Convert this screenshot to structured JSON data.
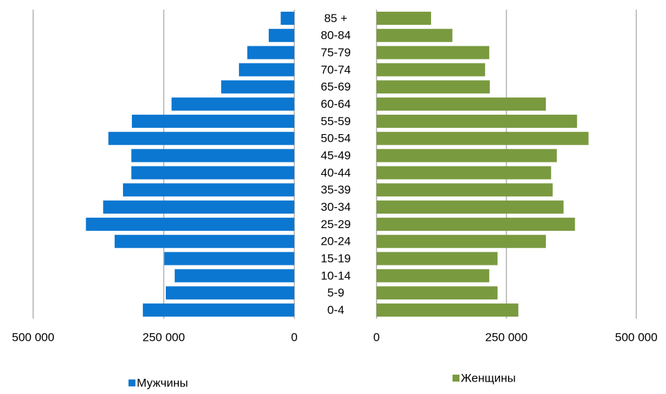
{
  "chart_data": {
    "type": "pyramid",
    "categories": [
      "0-4",
      "5-9",
      "10-14",
      "15-19",
      "20-24",
      "25-29",
      "30-34",
      "35-39",
      "40-44",
      "45-49",
      "50-54",
      "55-59",
      "60-64",
      "65-69",
      "70-74",
      "75-79",
      "80-84",
      "85 +"
    ],
    "series": [
      {
        "name": "Мужчины",
        "color": "#0b77d1",
        "side": "left",
        "values": [
          290000,
          246000,
          229000,
          249000,
          344000,
          399000,
          366000,
          328000,
          312000,
          312000,
          356000,
          311000,
          235000,
          140000,
          106000,
          90000,
          49000,
          26000
        ]
      },
      {
        "name": "Женщины",
        "color": "#7a9a3f",
        "side": "right",
        "values": [
          273000,
          233000,
          217000,
          233000,
          326000,
          382000,
          360000,
          339000,
          336000,
          347000,
          408000,
          386000,
          326000,
          218000,
          209000,
          217000,
          146000,
          105000
        ]
      }
    ],
    "xlim": [
      0,
      500000
    ],
    "xticks": [
      0,
      {
        "value": 250000,
        "label": "250 000"
      },
      {
        "value": 500000,
        "label": "500 000"
      }
    ],
    "grid": true
  }
}
